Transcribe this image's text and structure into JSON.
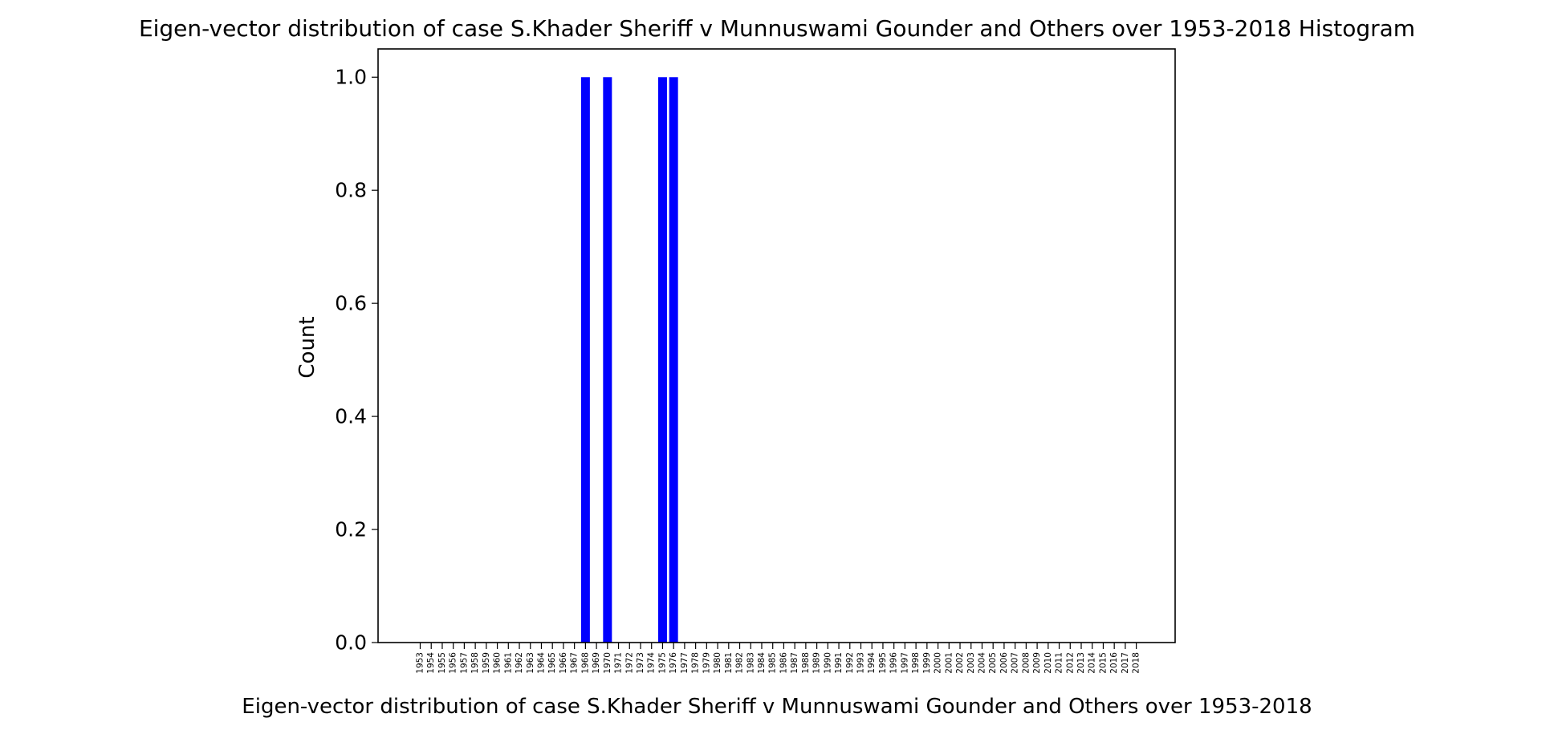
{
  "chart_data": {
    "type": "bar",
    "title": "Eigen-vector distribution of case S.Khader Sheriff v Munnuswami Gounder and Others over 1953-2018 Histogram",
    "xlabel": "Eigen-vector distribution of case S.Khader Sheriff v Munnuswami Gounder and Others over 1953-2018",
    "ylabel": "Count",
    "ylim": [
      0,
      1.05
    ],
    "yticks": [
      "0.0",
      "0.2",
      "0.4",
      "0.6",
      "0.8",
      "1.0"
    ],
    "grid": false,
    "bar_color": "#0000ff",
    "categories": [
      "1953",
      "1954",
      "1955",
      "1956",
      "1957",
      "1958",
      "1959",
      "1960",
      "1961",
      "1962",
      "1963",
      "1964",
      "1965",
      "1966",
      "1967",
      "1968",
      "1969",
      "1970",
      "1971",
      "1972",
      "1973",
      "1974",
      "1975",
      "1976",
      "1977",
      "1978",
      "1979",
      "1980",
      "1981",
      "1982",
      "1983",
      "1984",
      "1985",
      "1986",
      "1987",
      "1988",
      "1989",
      "1990",
      "1991",
      "1992",
      "1993",
      "1994",
      "1995",
      "1996",
      "1997",
      "1998",
      "1999",
      "2000",
      "2001",
      "2002",
      "2003",
      "2004",
      "2005",
      "2006",
      "2007",
      "2008",
      "2009",
      "2010",
      "2011",
      "2012",
      "2013",
      "2014",
      "2015",
      "2016",
      "2017",
      "2018"
    ],
    "values": [
      0,
      0,
      0,
      0,
      0,
      0,
      0,
      0,
      0,
      0,
      0,
      0,
      0,
      0,
      0,
      1,
      0,
      1,
      0,
      0,
      0,
      0,
      1,
      1,
      0,
      0,
      0,
      0,
      0,
      0,
      0,
      0,
      0,
      0,
      0,
      0,
      0,
      0,
      0,
      0,
      0,
      0,
      0,
      0,
      0,
      0,
      0,
      0,
      0,
      0,
      0,
      0,
      0,
      0,
      0,
      0,
      0,
      0,
      0,
      0,
      0,
      0,
      0,
      0,
      0,
      0
    ]
  }
}
